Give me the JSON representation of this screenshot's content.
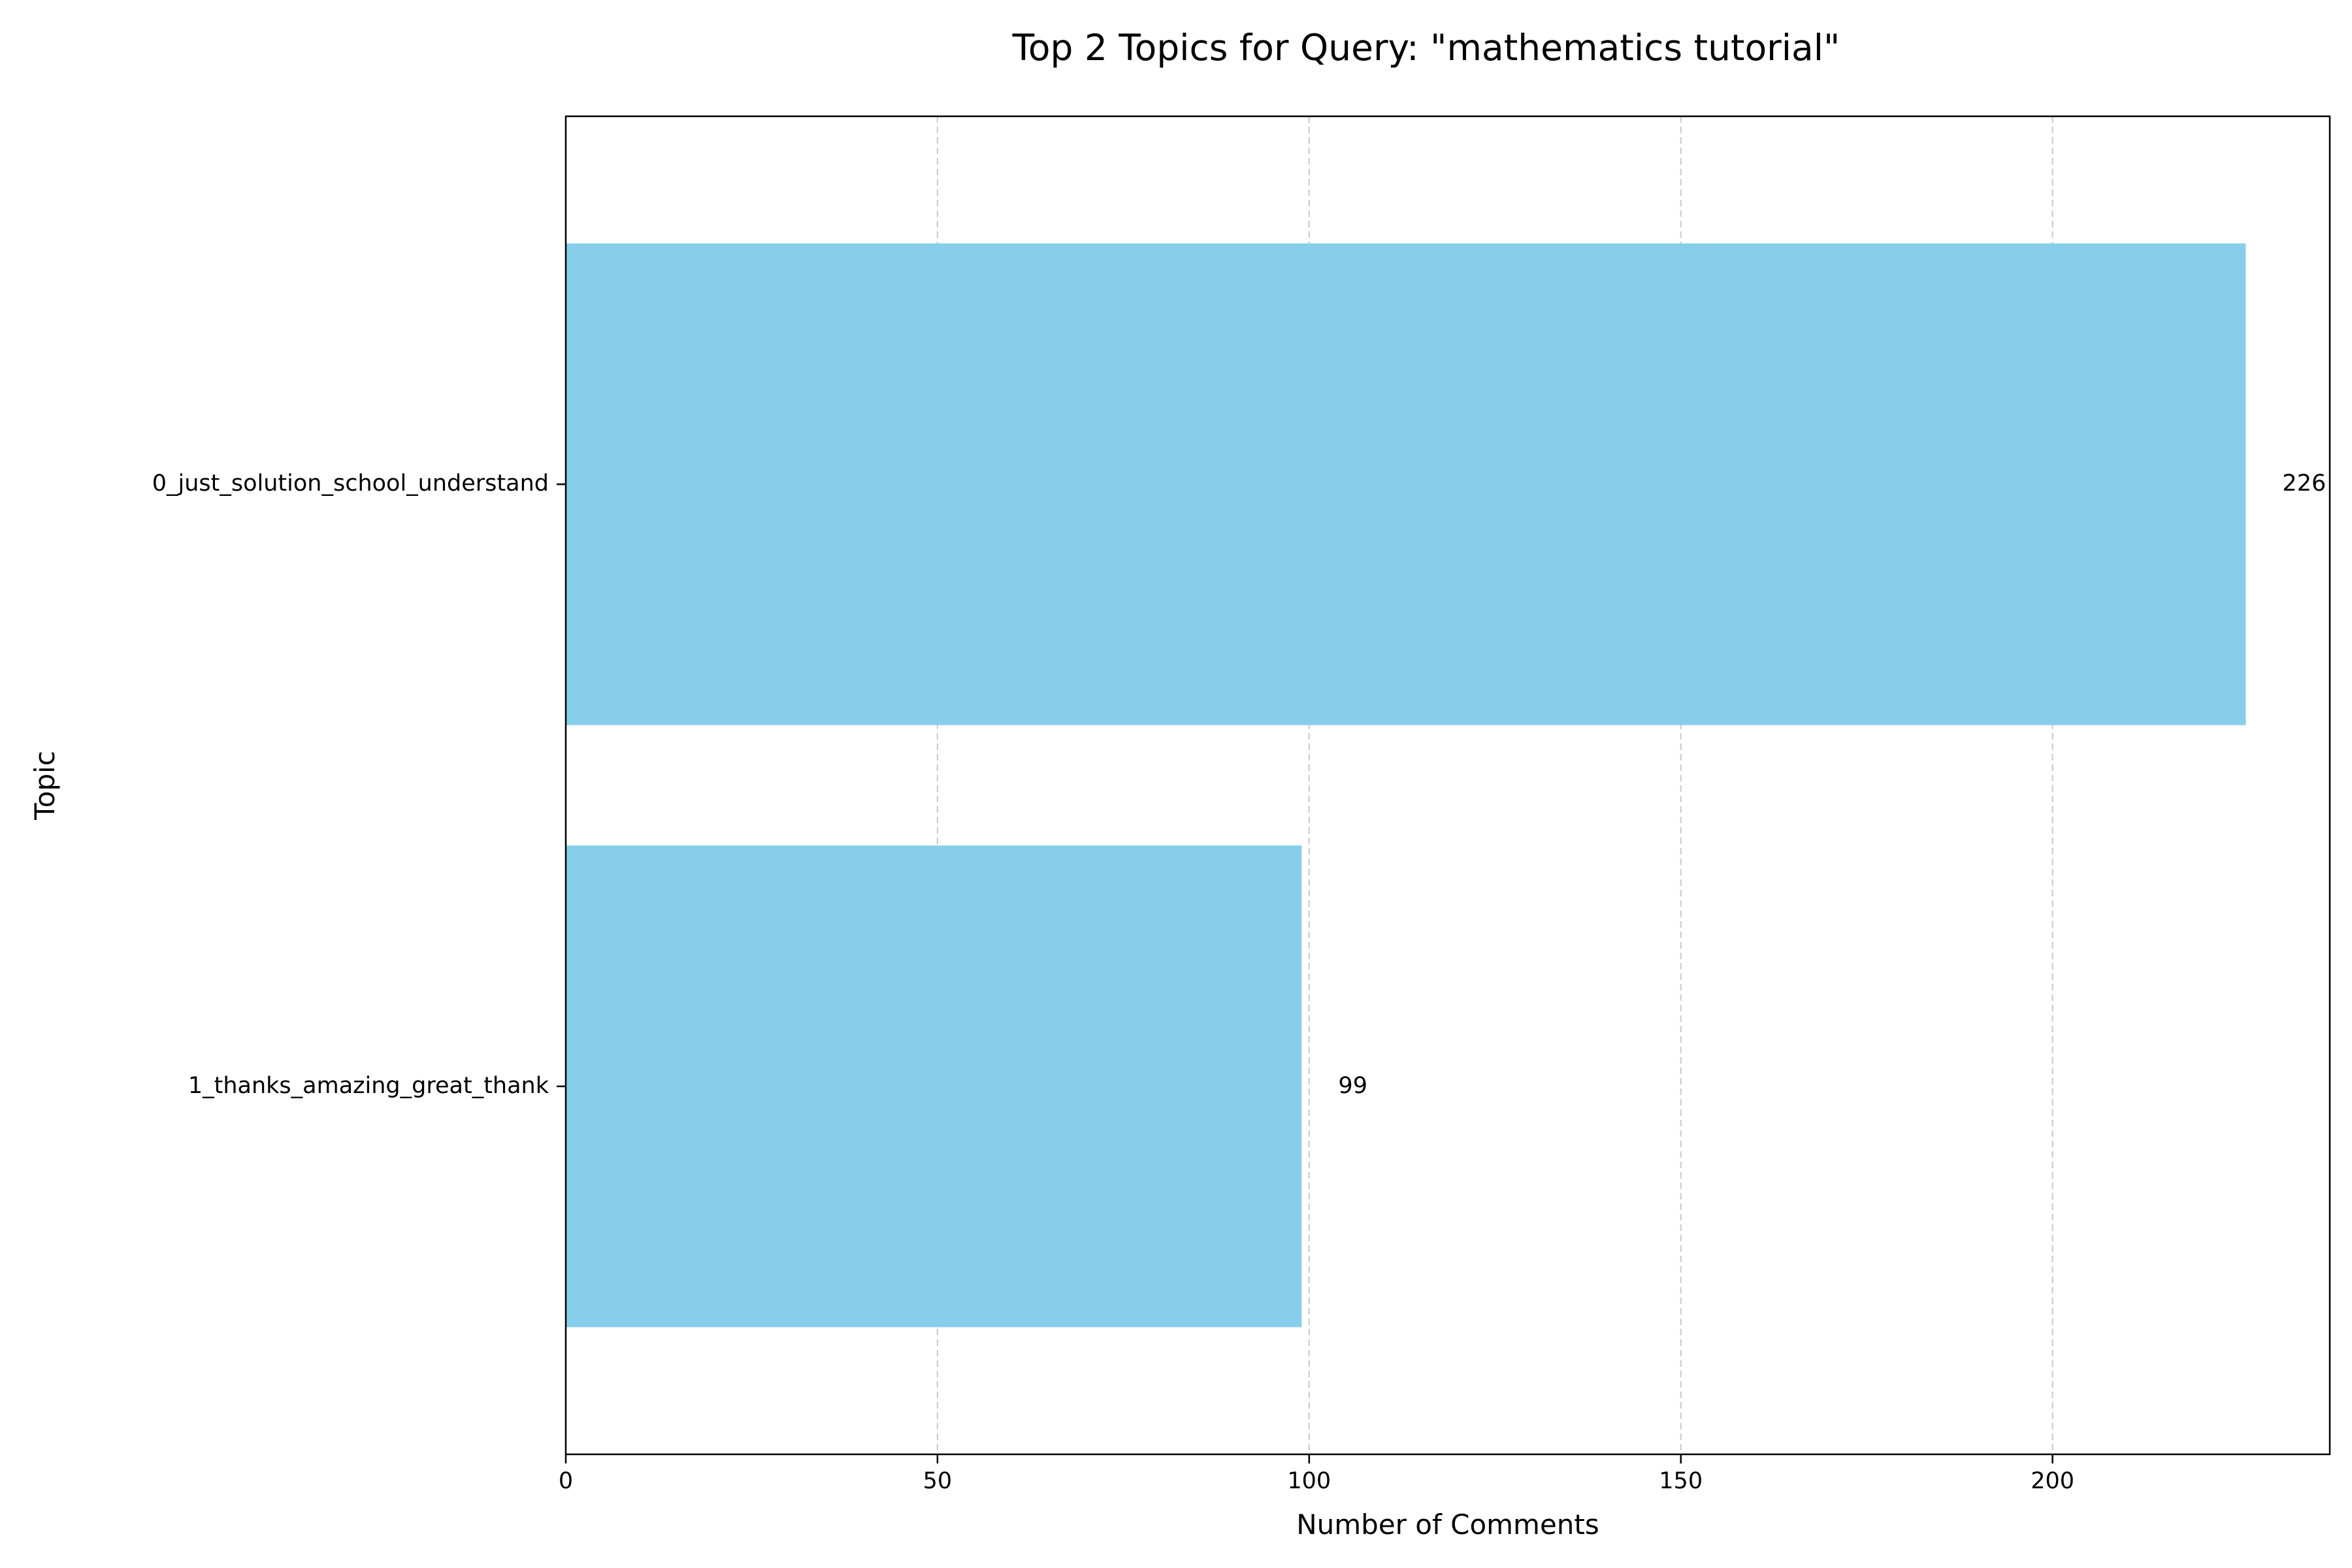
{
  "chart_data": {
    "type": "bar",
    "orientation": "horizontal",
    "title": "Top 2 Topics for Query: \"mathematics tutorial\"",
    "xlabel": "Number of Comments",
    "ylabel": "Topic",
    "categories": [
      "0_just_solution_school_understand",
      "1_thanks_amazing_great_thank"
    ],
    "values": [
      226,
      99
    ],
    "data_labels": [
      "226",
      "99"
    ],
    "xlim": [
      0,
      237.3
    ],
    "xticks": [
      0,
      50,
      100,
      150,
      200
    ],
    "xtick_labels": [
      "0",
      "50",
      "100",
      "150",
      "200"
    ],
    "grid": {
      "x": true,
      "y": false,
      "style": "dashed"
    },
    "bar_color": "#87CEEB",
    "grid_color": "#b0b0b0"
  }
}
